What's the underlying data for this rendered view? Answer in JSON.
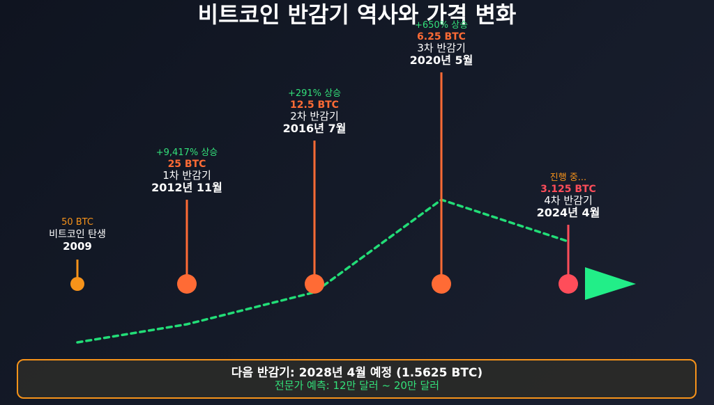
{
  "title": "비트코인 반감기 역사와 가격 변화",
  "chart_data": {
    "type": "timeline",
    "milestones": [
      {
        "date": "2009",
        "event": "비트코인 탄생",
        "reward": "50 BTC",
        "gain": "",
        "color": "#f7931a",
        "status": "first"
      },
      {
        "date": "2012년 11월",
        "event": "1차 반감기",
        "reward": "25 BTC",
        "gain": "+9,417% 상승",
        "color": "#ff6b35",
        "status": "past"
      },
      {
        "date": "2016년 7월",
        "event": "2차 반감기",
        "reward": "12.5 BTC",
        "gain": "+291% 상승",
        "color": "#ff6b35",
        "status": "past"
      },
      {
        "date": "2020년 5월",
        "event": "3차 반감기",
        "reward": "6.25 BTC",
        "gain": "+650% 상승",
        "color": "#ff6b35",
        "status": "past"
      },
      {
        "date": "2024년 4월",
        "event": "4차 반감기",
        "reward": "3.125 BTC",
        "gain": "진행 중...",
        "color": "#ff4d5a",
        "status": "current"
      }
    ],
    "trend_color": "#22dd77",
    "arrow_color": "#22ee88"
  },
  "footer": {
    "main": "다음 반감기: 2028년 4월 예정 (1.5625 BTC)",
    "sub": "전문가 예측: 12만 달러 ~ 20만 달러",
    "border_color": "#f7931a"
  }
}
